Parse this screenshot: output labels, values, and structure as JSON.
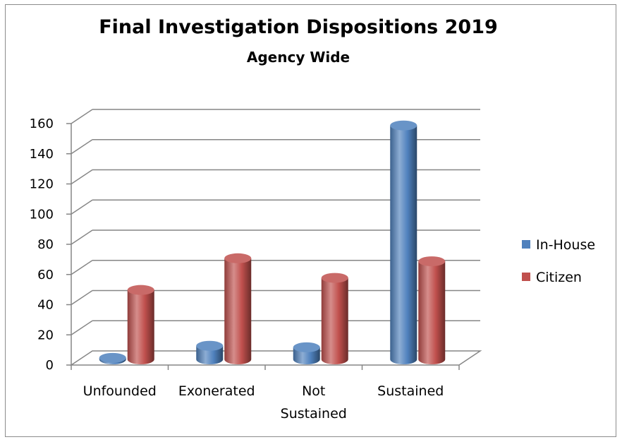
{
  "chart_data": {
    "type": "bar",
    "title": "Final Investigation Dispositions 2019",
    "subtitle": "Agency Wide",
    "categories": [
      "Unfounded",
      "Exonerated",
      "Not Sustained",
      "Sustained"
    ],
    "category_lines": [
      [
        "Unfounded"
      ],
      [
        "Exonerated"
      ],
      [
        "Not",
        "Sustained"
      ],
      [
        "Sustained"
      ]
    ],
    "series": [
      {
        "name": "In-House",
        "values": [
          1,
          9,
          8,
          155
        ],
        "color": "#4f81bd"
      },
      {
        "name": "Citizen",
        "values": [
          46,
          67,
          54,
          65
        ],
        "color": "#c0504d"
      }
    ],
    "ylim": [
      0,
      160
    ],
    "yticks": [
      "0",
      "20",
      "40",
      "60",
      "80",
      "100",
      "120",
      "140",
      "160"
    ],
    "grid": true,
    "legend_position": "right",
    "style": "3d-cylinder"
  }
}
